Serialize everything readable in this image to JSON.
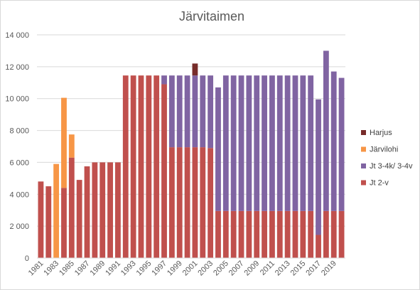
{
  "chart_data": {
    "type": "bar",
    "stacked": true,
    "title": "Järvitaimen",
    "xlabel": "",
    "ylabel": "",
    "ylim": [
      0,
      14000
    ],
    "yticks": [
      0,
      2000,
      4000,
      6000,
      8000,
      10000,
      12000,
      14000
    ],
    "ytick_labels": [
      "0",
      "2 000",
      "4 000",
      "6 000",
      "8 000",
      "10 000",
      "12 000",
      "14 000"
    ],
    "categories": [
      "1981",
      "1982",
      "1983",
      "1984",
      "1985",
      "1986",
      "1987",
      "1988",
      "1989",
      "1990",
      "1991",
      "1992",
      "1993",
      "1994",
      "1995",
      "1996",
      "1997",
      "1998",
      "1999",
      "2000",
      "2001",
      "2002",
      "2003",
      "2004",
      "2005",
      "2006",
      "2007",
      "2008",
      "2009",
      "2010",
      "2011",
      "2012",
      "2013",
      "2014",
      "2015",
      "2016",
      "2017",
      "2018",
      "2019",
      "2020"
    ],
    "xtick_labels": [
      "1981",
      "1983",
      "1985",
      "1987",
      "1989",
      "1991",
      "1993",
      "1995",
      "1997",
      "1999",
      "2001",
      "2003",
      "2005",
      "2007",
      "2009",
      "2011",
      "2013",
      "2015",
      "2017",
      "2019"
    ],
    "grid": true,
    "legend_position": "right",
    "series": [
      {
        "name": "Jt 2-v",
        "color": "#c0504d",
        "values": [
          4800,
          4500,
          0,
          4400,
          6300,
          4900,
          5750,
          6000,
          6000,
          6000,
          6000,
          11450,
          11450,
          11450,
          11450,
          11450,
          10900,
          6950,
          6950,
          6950,
          6950,
          6950,
          6900,
          2950,
          2950,
          2950,
          2950,
          2950,
          2950,
          2950,
          2950,
          2950,
          2950,
          2950,
          2950,
          2950,
          1450,
          2950,
          2950,
          2950
        ]
      },
      {
        "name": "Jt 3-4k/ 3-4v",
        "color": "#8064a2",
        "values": [
          0,
          0,
          0,
          0,
          0,
          0,
          0,
          0,
          0,
          0,
          0,
          0,
          0,
          0,
          0,
          0,
          550,
          4500,
          4500,
          4500,
          4500,
          4500,
          4550,
          7750,
          8500,
          8500,
          8500,
          8500,
          8500,
          8500,
          8500,
          8500,
          8500,
          8500,
          8500,
          8500,
          8500,
          10050,
          8750,
          8350
        ]
      },
      {
        "name": "Järvilohi",
        "color": "#f79646",
        "values": [
          0,
          0,
          5900,
          5650,
          1450,
          0,
          0,
          0,
          0,
          0,
          0,
          0,
          0,
          0,
          0,
          0,
          0,
          0,
          0,
          0,
          0,
          0,
          0,
          0,
          0,
          0,
          0,
          0,
          0,
          0,
          0,
          0,
          0,
          0,
          0,
          0,
          0,
          0,
          0,
          0
        ]
      },
      {
        "name": "Harjus",
        "color": "#772c2a",
        "values": [
          0,
          0,
          0,
          0,
          0,
          0,
          0,
          0,
          0,
          0,
          0,
          0,
          0,
          0,
          0,
          0,
          0,
          0,
          0,
          0,
          750,
          0,
          0,
          0,
          0,
          0,
          0,
          0,
          0,
          0,
          0,
          0,
          0,
          0,
          0,
          0,
          0,
          0,
          0,
          0
        ]
      }
    ],
    "legend_order": [
      "Harjus",
      "Järvilohi",
      "Jt 3-4k/ 3-4v",
      "Jt 2-v"
    ]
  }
}
